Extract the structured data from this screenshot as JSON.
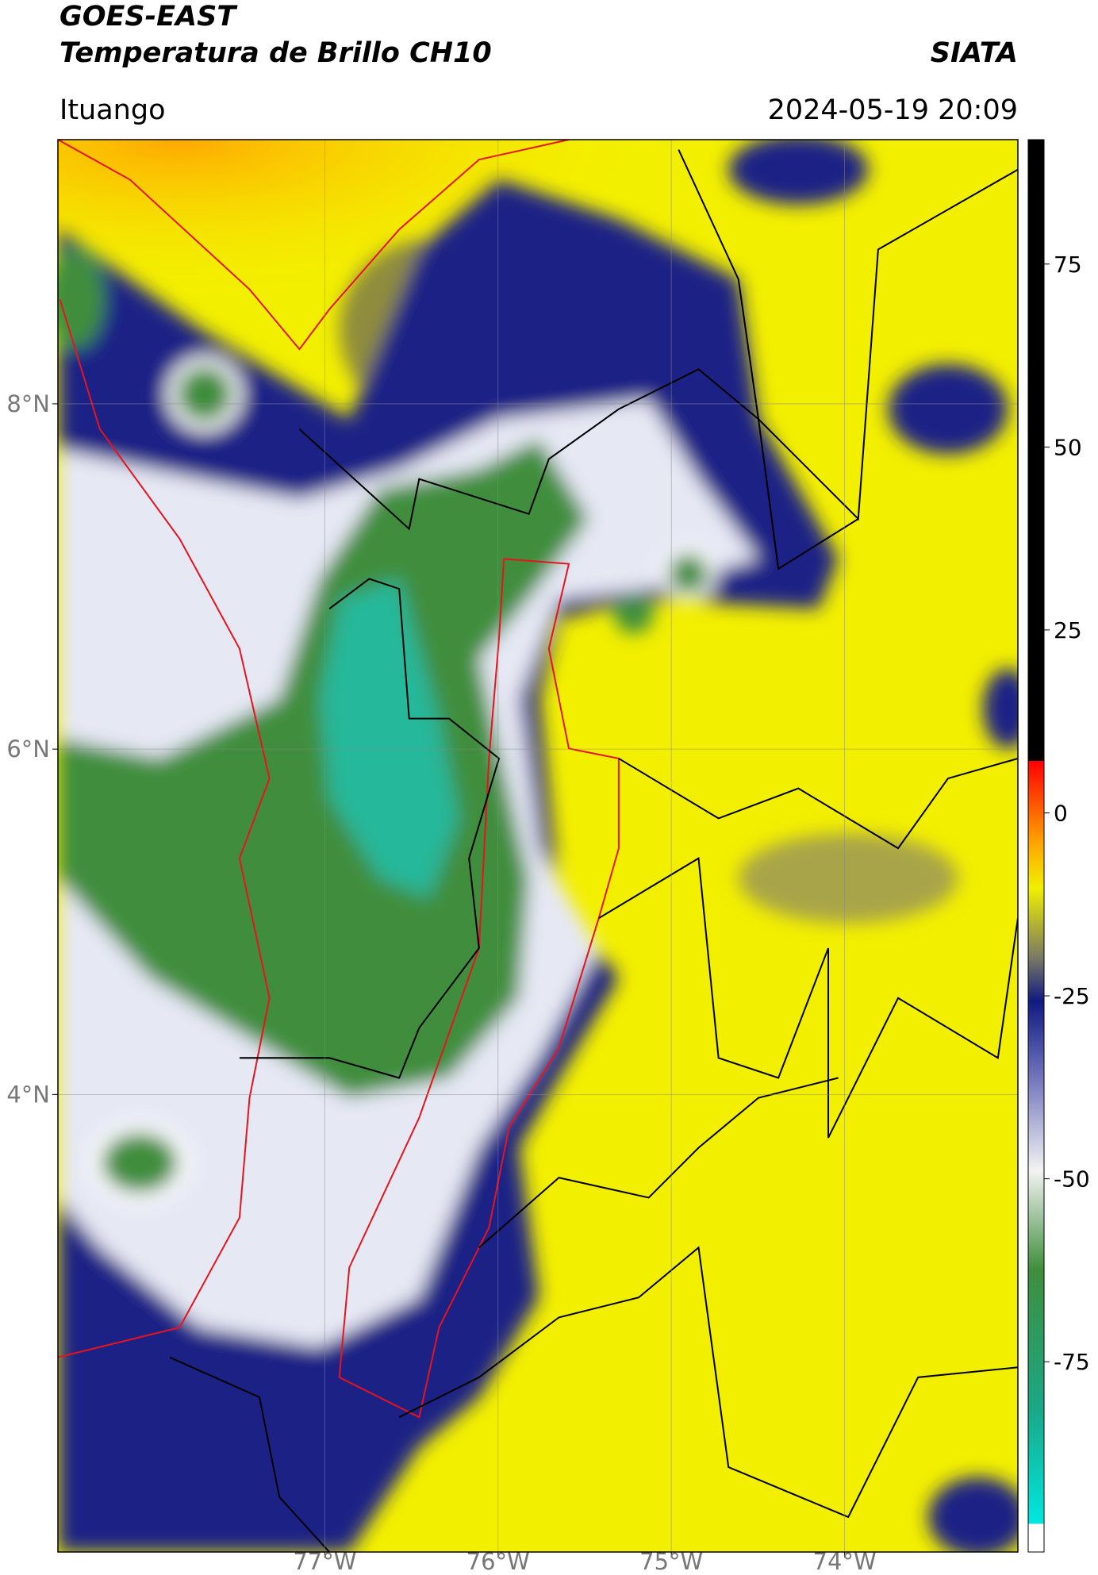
{
  "header": {
    "title": "GOES-EAST",
    "subtitle": "Temperatura de Brillo CH10",
    "org": "SIATA",
    "location": "Ituango",
    "datetime": "2024-05-19 20:09"
  },
  "map": {
    "lat_range": [
      1.35,
      9.53
    ],
    "lon_range": [
      -78.54,
      -73.0
    ],
    "lat_ticks": [
      {
        "value": 8,
        "label": "8°N"
      },
      {
        "value": 6,
        "label": "6°N"
      },
      {
        "value": 4,
        "label": "4°N"
      }
    ],
    "lon_ticks": [
      {
        "value": -77,
        "label": "77°W"
      },
      {
        "value": -76,
        "label": "76°W"
      },
      {
        "value": -75,
        "label": "75°W"
      },
      {
        "value": -74,
        "label": "74°W"
      }
    ]
  },
  "colorbar": {
    "range": [
      -101,
      92
    ],
    "ticks": [
      75,
      50,
      25,
      0,
      -25,
      -50,
      -75
    ]
  }
}
